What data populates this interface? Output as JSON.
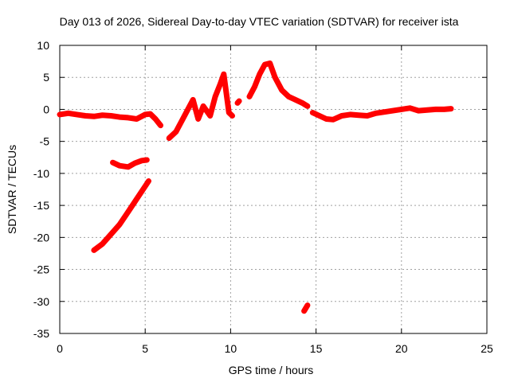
{
  "chart_data": {
    "type": "scatter",
    "title": "Day 013 of 2026, Sidereal Day-to-day VTEC variation (SDTVAR) for receiver ista",
    "xlabel": "GPS time / hours",
    "ylabel": "SDTVAR / TECUs",
    "xlim": [
      0,
      25
    ],
    "ylim": [
      -35,
      10
    ],
    "xticks": [
      0,
      5,
      10,
      15,
      20,
      25
    ],
    "xtick_labels": [
      "0",
      "5",
      "10",
      "15",
      "20",
      "25"
    ],
    "yticks": [
      10,
      5,
      0,
      -5,
      -10,
      -15,
      -20,
      -25,
      -30,
      -35
    ],
    "ytick_labels": [
      "10",
      "5",
      "0",
      "-5",
      "-10",
      "-15",
      "-20",
      "-25",
      "-30",
      "-35"
    ],
    "grid": true,
    "legend": "none",
    "color": "#ff0000",
    "series": [
      {
        "name": "main-track-a",
        "x": [
          0,
          0.5,
          1.0,
          1.5,
          2.0,
          2.5,
          3.0,
          3.5,
          4.0,
          4.5,
          5.0,
          5.3,
          5.6,
          5.9
        ],
        "y": [
          -0.8,
          -0.6,
          -0.8,
          -1.0,
          -1.1,
          -0.9,
          -1.0,
          -1.2,
          -1.3,
          -1.5,
          -0.8,
          -0.7,
          -1.5,
          -2.5
        ]
      },
      {
        "name": "main-track-b",
        "x": [
          6.4,
          6.8,
          7.2,
          7.5,
          7.8,
          8.1,
          8.4,
          8.8,
          9.1,
          9.4,
          9.6,
          9.9,
          10.1
        ],
        "y": [
          -4.5,
          -3.5,
          -1.5,
          0.0,
          1.5,
          -1.5,
          0.5,
          -1.0,
          2.0,
          4.0,
          5.5,
          -0.5,
          -1.0
        ]
      },
      {
        "name": "main-track-c",
        "x": [
          11.1,
          11.4,
          11.7,
          12.0,
          12.3,
          12.6,
          13.0,
          13.4,
          13.8,
          14.2,
          14.5
        ],
        "y": [
          2.0,
          3.5,
          5.5,
          7.0,
          7.2,
          5.0,
          3.0,
          2.0,
          1.5,
          1.0,
          0.5
        ]
      },
      {
        "name": "main-track-d",
        "x": [
          14.8,
          15.2,
          15.6,
          16.0,
          16.5,
          17.0,
          17.5,
          18.0,
          18.5,
          19.0,
          19.5,
          20.0,
          20.5,
          21.0,
          21.5,
          22.0,
          22.5,
          22.9
        ],
        "y": [
          -0.5,
          -1.0,
          -1.5,
          -1.6,
          -1.0,
          -0.8,
          -0.9,
          -1.0,
          -0.6,
          -0.4,
          -0.2,
          0.0,
          0.2,
          -0.2,
          -0.1,
          0.0,
          0.0,
          0.1
        ]
      },
      {
        "name": "short-track-mid",
        "x": [
          3.1,
          3.5,
          4.0,
          4.4,
          4.8,
          5.1
        ],
        "y": [
          -8.3,
          -8.8,
          -9.0,
          -8.4,
          -8.0,
          -7.9
        ]
      },
      {
        "name": "descending-track",
        "x": [
          2.0,
          2.5,
          3.0,
          3.5,
          4.0,
          4.5,
          5.0,
          5.2
        ],
        "y": [
          -22.0,
          -21.0,
          -19.5,
          -18.0,
          -16.0,
          -14.0,
          -12.0,
          -11.2
        ]
      },
      {
        "name": "short-track-low",
        "x": [
          14.3,
          14.5
        ],
        "y": [
          -31.5,
          -30.6
        ]
      },
      {
        "name": "short-track-upper",
        "x": [
          10.4,
          10.5
        ],
        "y": [
          1.0,
          1.3
        ]
      }
    ]
  }
}
